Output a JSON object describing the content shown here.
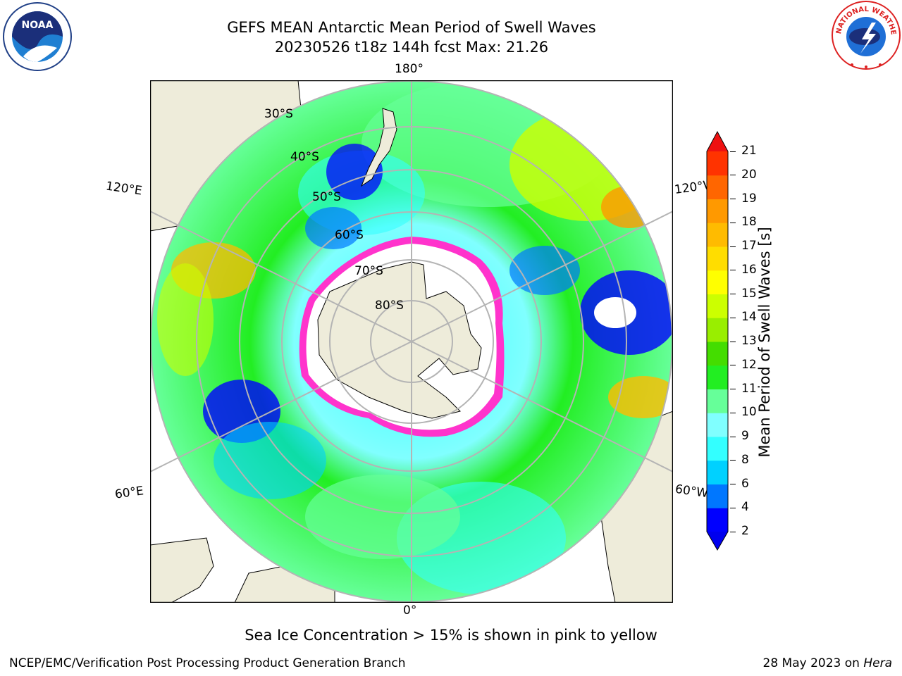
{
  "header": {
    "title_line1": "GEFS MEAN Antarctic Mean Period of Swell Waves",
    "title_line2": "20230526 t18z 144h fcst   Max: 21.26"
  },
  "map": {
    "projection": "south-polar-stereographic",
    "lon_labels": {
      "top": "180°",
      "bottom": "0°",
      "left_upper": "120°E",
      "left_lower": "60°E",
      "right_upper": "120°W",
      "right_lower": "60°W"
    },
    "lat_labels": [
      "30°S",
      "40°S",
      "50°S",
      "60°S",
      "70°S",
      "80°S"
    ],
    "colors": {
      "land": "#eeecda",
      "sea_ice_no_data": "#ffffff",
      "graticule": "#b4b4b4",
      "coastline": "#000000"
    }
  },
  "colorbar": {
    "label": "Mean Period of Swell Waves [s]",
    "ticks": [
      "2",
      "4",
      "6",
      "8",
      "9",
      "10",
      "11",
      "12",
      "13",
      "14",
      "15",
      "16",
      "17",
      "18",
      "19",
      "20",
      "21"
    ],
    "colors": [
      "#0000ff",
      "#0077ff",
      "#00d1ff",
      "#33ffff",
      "#80ffff",
      "#66ff99",
      "#22ee22",
      "#44dd00",
      "#99ee00",
      "#ccff00",
      "#ffff00",
      "#ffdd00",
      "#ffbb00",
      "#ff9900",
      "#ff6600",
      "#ff3300",
      "#ee1111"
    ],
    "under_color": "#0000ee",
    "over_color": "#ee1111"
  },
  "note": "Sea Ice Concentration > 15% is shown in pink to yellow",
  "footer": {
    "left": "NCEP/EMC/Verification Post Processing Product Generation Branch",
    "right_prefix": "28 May 2023 on ",
    "right_host": "Hera"
  },
  "logos": {
    "noaa_text": "NOAA",
    "nws_text": "NATIONAL WEATHER SERVICE"
  }
}
